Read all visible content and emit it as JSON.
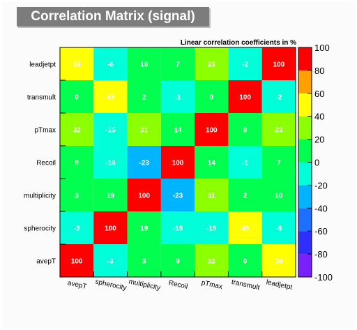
{
  "chart_data": {
    "type": "heatmap",
    "title": "Correlation Matrix (signal)",
    "subtitle": "Linear correlation coefficients in %",
    "x_categories": [
      "avepT",
      "spherocity",
      "multiplicity",
      "Recoil",
      "pTmax",
      "transmult",
      "leadjetpt"
    ],
    "y_categories": [
      "avepT",
      "spherocity",
      "multiplicity",
      "Recoil",
      "pTmax",
      "transmult",
      "leadjetpt"
    ],
    "values": [
      [
        100,
        -3,
        3,
        9,
        32,
        0,
        59
      ],
      [
        -3,
        100,
        19,
        -16,
        -15,
        45,
        -6
      ],
      [
        3,
        19,
        100,
        -23,
        31,
        2,
        10
      ],
      [
        9,
        -16,
        -23,
        100,
        14,
        -1,
        7
      ],
      [
        32,
        -15,
        31,
        14,
        100,
        0,
        23
      ],
      [
        0,
        45,
        2,
        -1,
        0,
        100,
        -2
      ],
      [
        59,
        -6,
        10,
        7,
        23,
        -2,
        100
      ]
    ],
    "zlim": [
      -100,
      100
    ],
    "colorbar_ticks": [
      100,
      80,
      60,
      40,
      20,
      0,
      -20,
      -40,
      -60,
      -80,
      -100
    ],
    "colors": {
      "frame": "#000000",
      "cell_text": "#ffffff"
    }
  }
}
